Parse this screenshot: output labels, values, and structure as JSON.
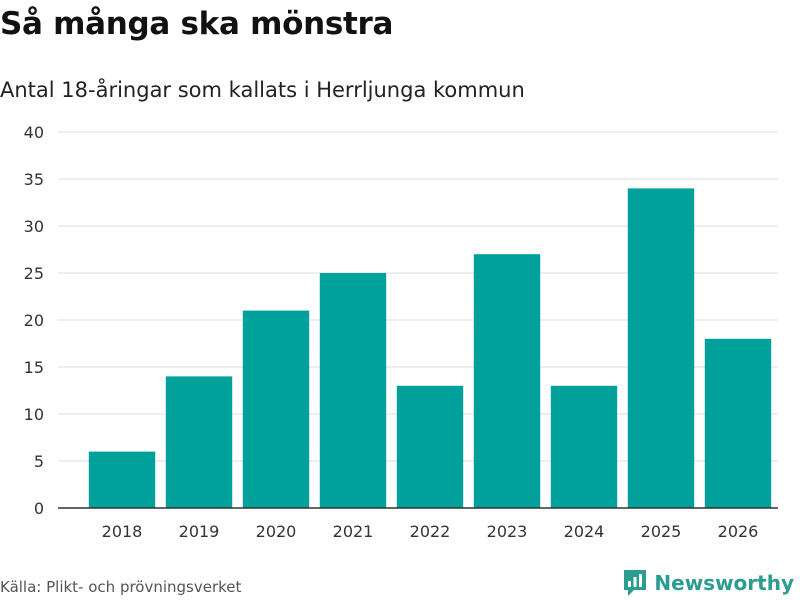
{
  "header": {
    "title": "Så många ska mönstra",
    "subtitle": "Antal 18-åringar som kallats i Herrljunga kommun"
  },
  "footer": {
    "source": "Källa: Plikt- och prövningsverket",
    "brand": "Newsworthy"
  },
  "colors": {
    "bar": "#00a19a",
    "brand": "#2a9d8f",
    "grid": "#dddddd",
    "axis": "#333333"
  },
  "chart_data": {
    "type": "bar",
    "title": "Så många ska mönstra",
    "subtitle": "Antal 18-åringar som kallats i Herrljunga kommun",
    "categories": [
      "2018",
      "2019",
      "2020",
      "2021",
      "2022",
      "2023",
      "2024",
      "2025",
      "2026"
    ],
    "values": [
      6,
      14,
      21,
      25,
      13,
      27,
      13,
      34,
      18
    ],
    "yticks": [
      0,
      5,
      10,
      15,
      20,
      25,
      30,
      35,
      40
    ],
    "ylim": [
      0,
      40
    ],
    "xlabel": "",
    "ylabel": "",
    "grid": true,
    "legend": "none"
  }
}
